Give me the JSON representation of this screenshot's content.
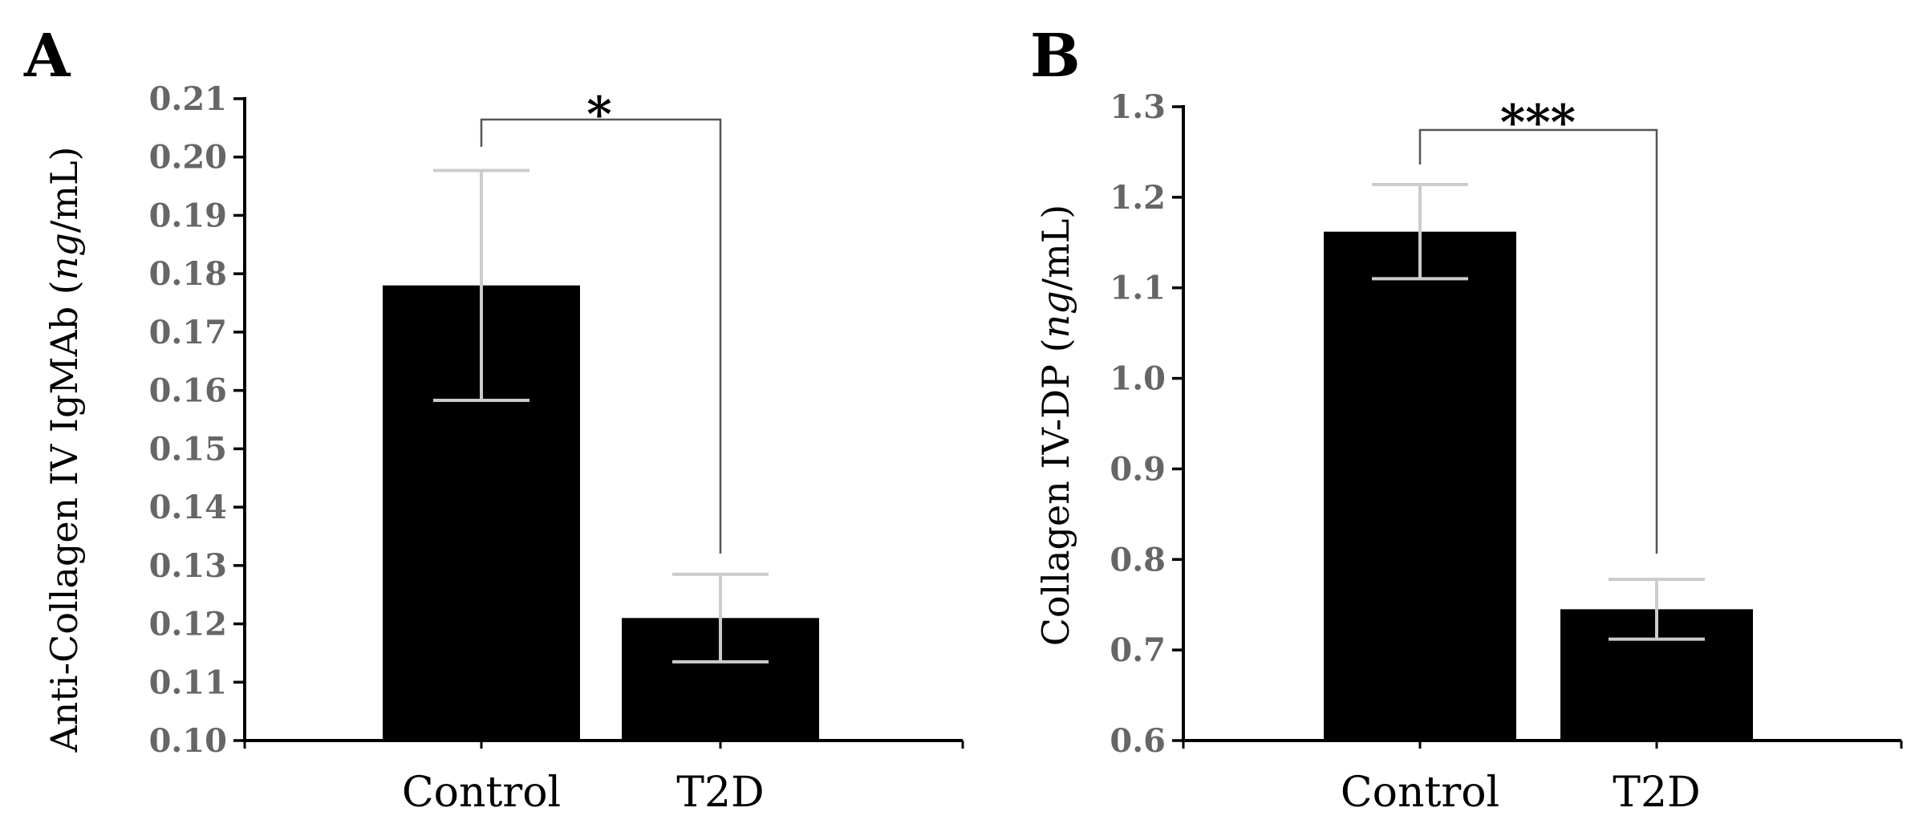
{
  "chart_data": [
    {
      "panel": "A",
      "type": "bar",
      "categories": [
        "Control",
        "T2D"
      ],
      "values": [
        0.178,
        0.121
      ],
      "error": [
        0.0197,
        0.0075
      ],
      "bar_color": "#000000",
      "error_color": "#cccccc",
      "ylabel_parts": [
        "Anti-Collagen IV IgMAb (",
        "ng",
        "/mL)"
      ],
      "ylim": [
        0.1,
        0.21
      ],
      "yticks": [
        "0.10",
        "0.11",
        "0.12",
        "0.13",
        "0.14",
        "0.15",
        "0.16",
        "0.17",
        "0.18",
        "0.19",
        "0.20",
        "0.21"
      ],
      "significance": "*",
      "grid": false
    },
    {
      "panel": "B",
      "type": "bar",
      "categories": [
        "Control",
        "T2D"
      ],
      "values": [
        1.162,
        0.745
      ],
      "error": [
        0.052,
        0.033
      ],
      "bar_color": "#000000",
      "error_color": "#cccccc",
      "ylabel_parts": [
        "Collagen IV-DP (",
        "ng",
        "/mL)"
      ],
      "ylim": [
        0.6,
        1.3
      ],
      "yticks": [
        "0.6",
        "0.7",
        "0.8",
        "0.9",
        "1.0",
        "1.1",
        "1.2",
        "1.3"
      ],
      "significance": "***",
      "grid": false
    }
  ]
}
